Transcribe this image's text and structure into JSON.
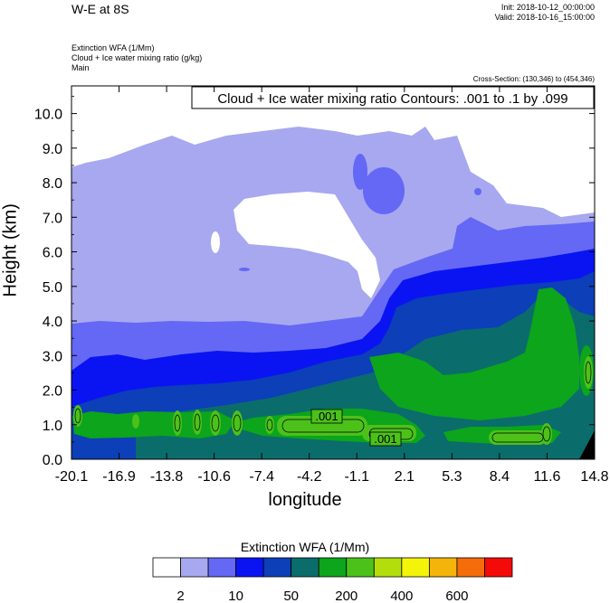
{
  "header": {
    "title": "W-E at 8S",
    "init": "Init: 2018-10-12_00:00:00",
    "valid": "Valid: 2018-10-16_15:00:00",
    "field_line1": "Extinction WFA   (1/Mm)",
    "field_line2": "Cloud + Ice water mixing ratio   (g/kg)",
    "field_line3": "Main",
    "cross_section": "Cross-Section: (130,346) to (454,346)"
  },
  "chart_data": {
    "type": "heatmap",
    "title": "W-E at 8S",
    "xlabel": "longitude",
    "ylabel": "Height (km)",
    "xlim": [
      -20.1,
      14.8
    ],
    "ylim": [
      0,
      10.8
    ],
    "x_ticks": [
      "-20.1",
      "-16.9",
      "-13.8",
      "-10.6",
      "-7.4",
      "-4.2",
      "-1.1",
      "2.1",
      "5.3",
      "8.4",
      "11.6",
      "14.8"
    ],
    "y_ticks": [
      "0.0",
      "1.0",
      "2.0",
      "3.0",
      "4.0",
      "5.0",
      "6.0",
      "7.0",
      "8.0",
      "9.0",
      "10.0"
    ],
    "contour_info": "Cloud + Ice water mixing ratio Contours: .001 to .1 by .099",
    "contour_labels": [
      ".001",
      ".001"
    ],
    "colorbar": {
      "title": "Extinction WFA  (1/Mm)",
      "labels": [
        "2",
        "10",
        "50",
        "200",
        "400",
        "600"
      ],
      "colors": [
        "#ffffff",
        "#a7a8f0",
        "#6468f5",
        "#0a14f2",
        "#0c3fb8",
        "#0b6c6c",
        "#0ca51c",
        "#4cc11a",
        "#b3de0c",
        "#f4f40a",
        "#f5b40a",
        "#f56c0a",
        "#f50a0a"
      ]
    },
    "colors": {
      "c_white": "#ffffff",
      "c_lav": "#a7a8f0",
      "c_mid": "#6468f5",
      "c_blue": "#0a14f2",
      "c_dblue": "#0c3fb8",
      "c_teal": "#0b6c6c",
      "c_green": "#0ca51c",
      "c_lgreen": "#4cc11a",
      "terrain": "#000000"
    }
  }
}
